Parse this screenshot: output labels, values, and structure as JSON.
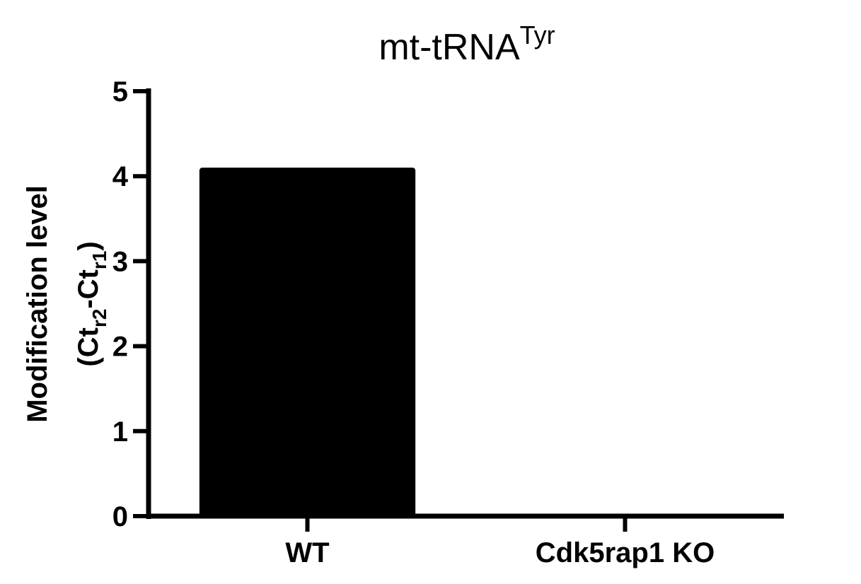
{
  "chart_data": {
    "type": "bar",
    "title": "mt-tRNA",
    "title_superscript": "Tyr",
    "categories": [
      "WT",
      "Cdk5rap1 KO"
    ],
    "values": [
      4.1,
      0
    ],
    "ylabel": {
      "line1": "Modification level",
      "line2_open": "(Ct",
      "sub_r": "r",
      "sub_2": "2",
      "dash": "-Ct",
      "sub_1": "1",
      "close": ")"
    },
    "ylim": [
      0,
      5
    ],
    "yticks": [
      "0",
      "1",
      "2",
      "3",
      "4",
      "5"
    ],
    "grid": false,
    "legend": "none",
    "bar_color": "#000000"
  }
}
